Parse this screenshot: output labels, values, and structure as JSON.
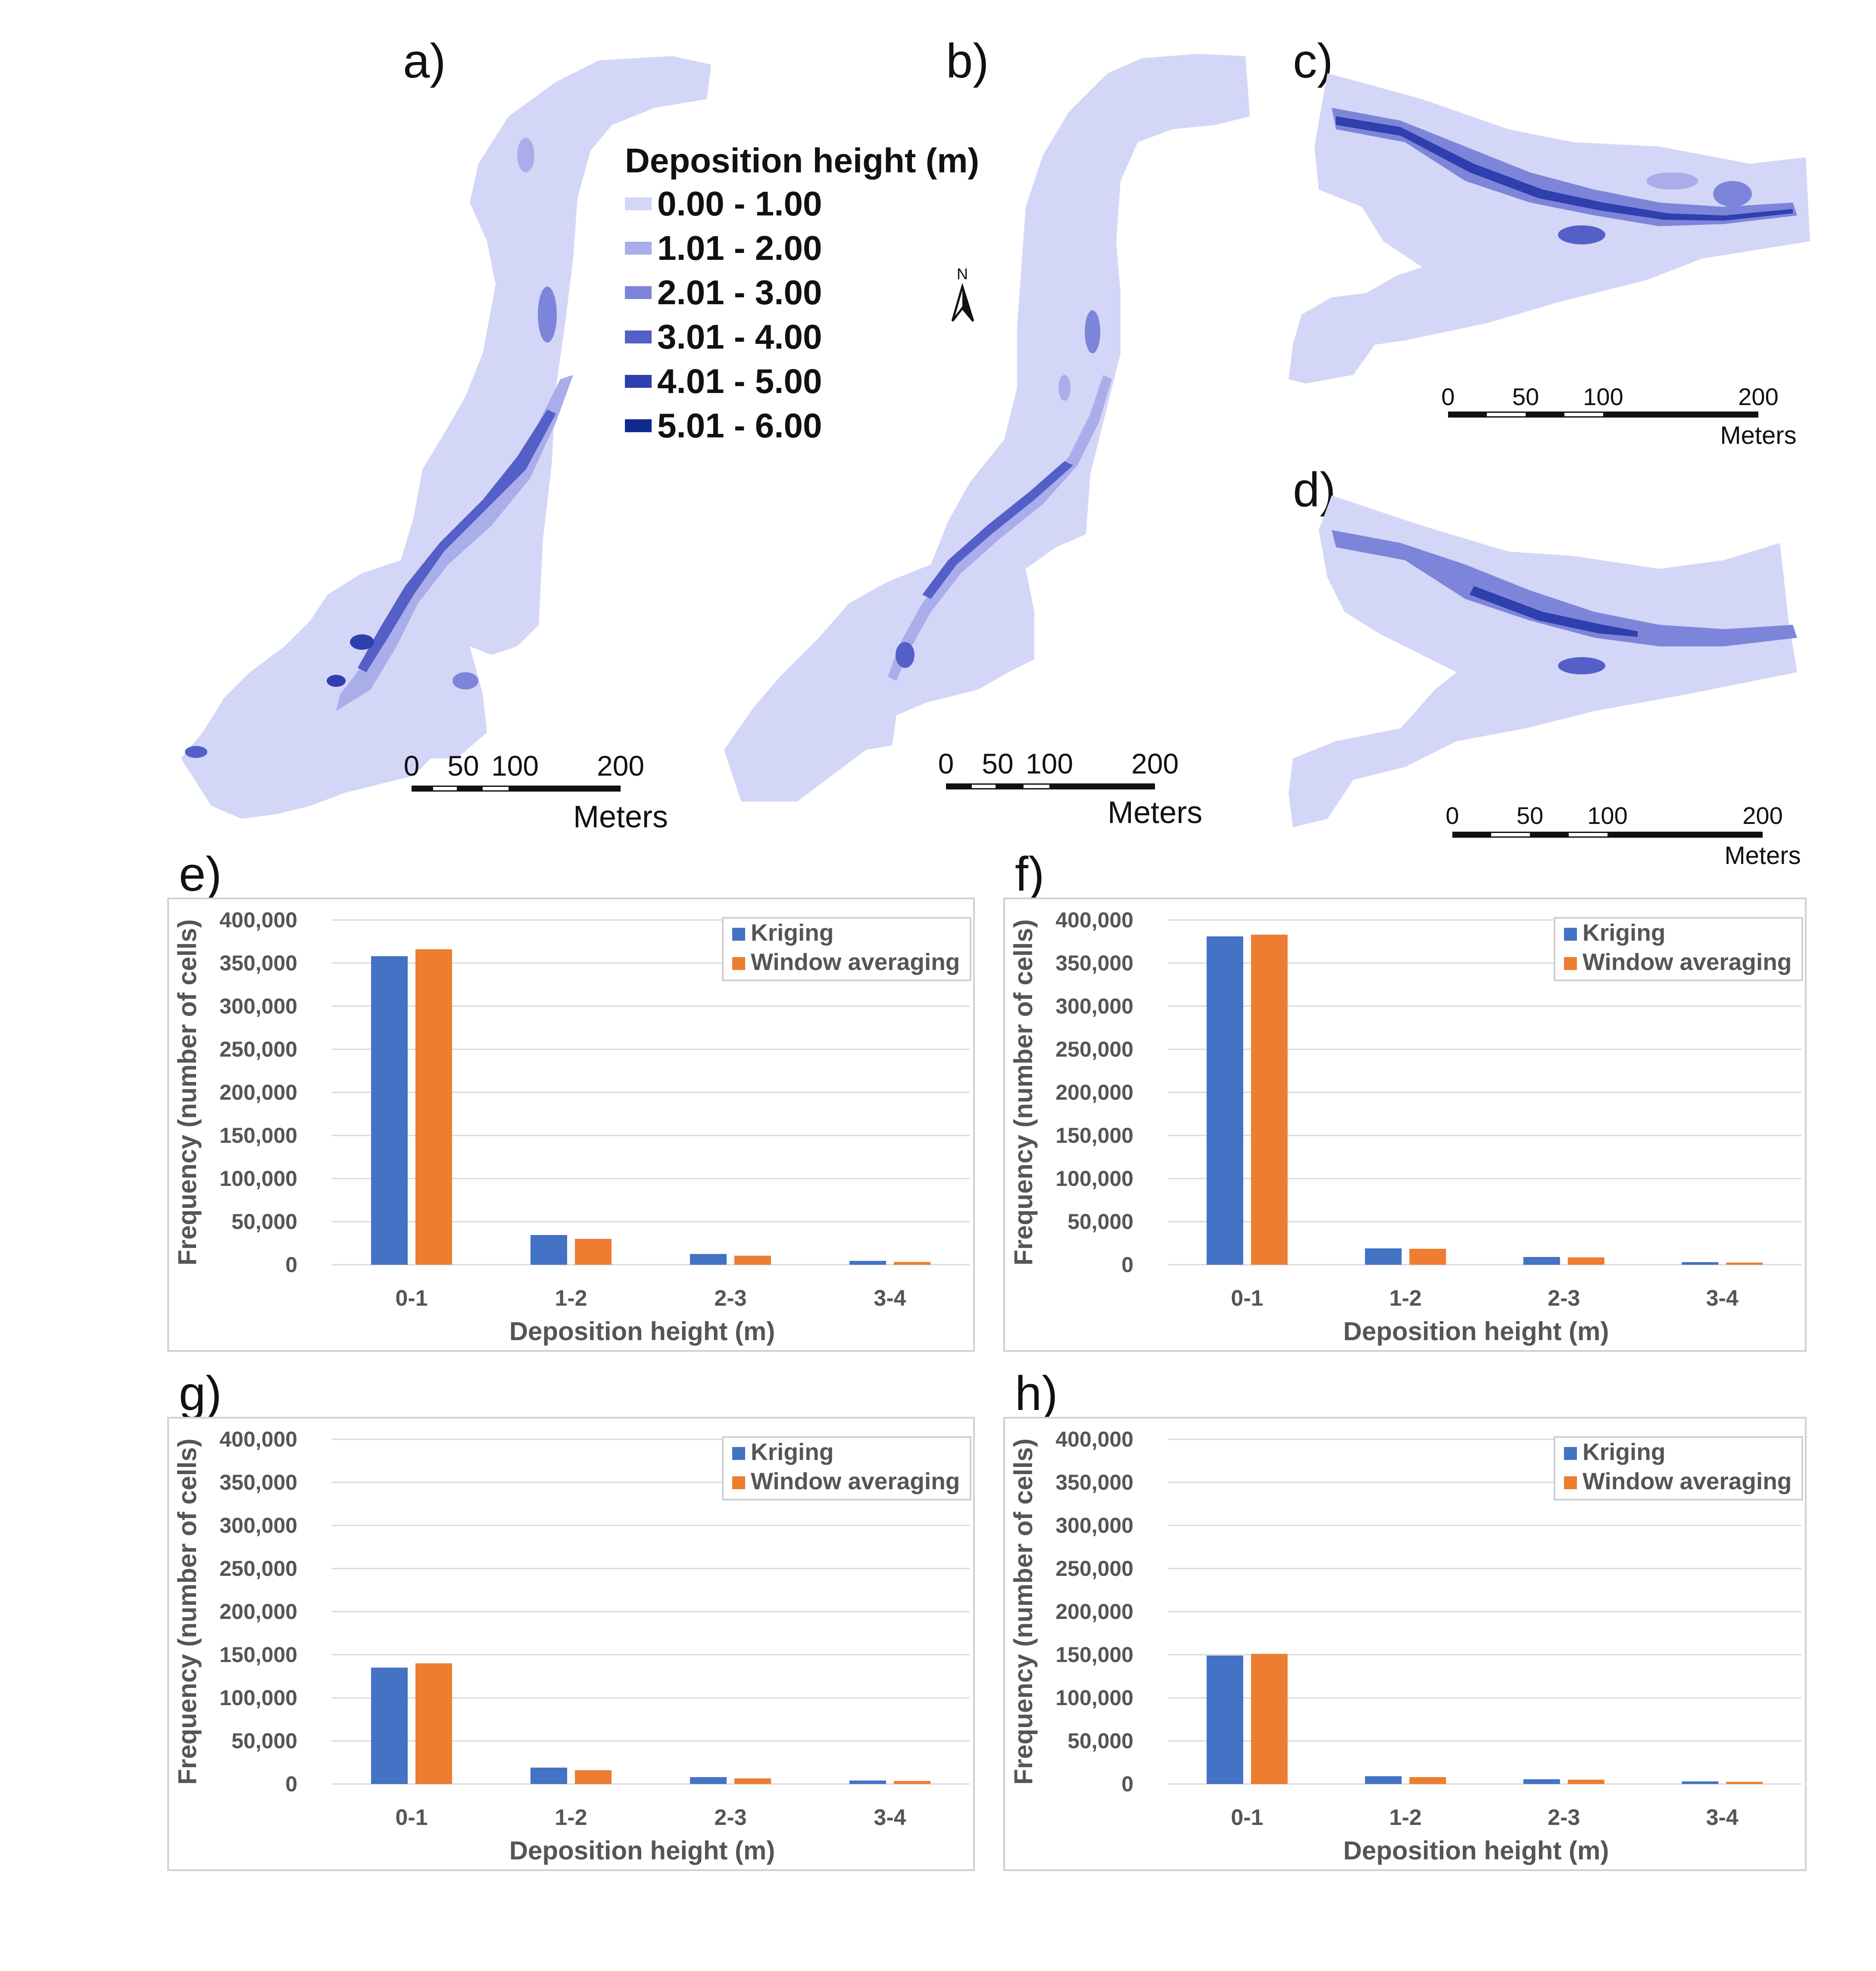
{
  "maps": {
    "legend": {
      "title": "Deposition height (m)",
      "classes": [
        {
          "label": "0.00 - 1.00",
          "color": "#d3d6f7"
        },
        {
          "label": "1.01 - 2.00",
          "color": "#a9ade9"
        },
        {
          "label": "2.01 - 3.00",
          "color": "#7d85da"
        },
        {
          "label": "3.01 - 4.00",
          "color": "#5460c7"
        },
        {
          "label": "4.01 - 5.00",
          "color": "#2f3fae"
        },
        {
          "label": "5.01 - 6.00",
          "color": "#0f2a8f"
        }
      ]
    },
    "north_label": "N",
    "panels": [
      {
        "label": "a)",
        "scale_ticks": [
          "0",
          "50",
          "100",
          "200"
        ],
        "scale_unit": "Meters"
      },
      {
        "label": "b)",
        "scale_ticks": [
          "0",
          "50",
          "100",
          "200"
        ],
        "scale_unit": "Meters"
      },
      {
        "label": "c)",
        "scale_ticks": [
          "0",
          "50",
          "100",
          "200"
        ],
        "scale_unit": "Meters"
      },
      {
        "label": "d)",
        "scale_ticks": [
          "0",
          "50",
          "100",
          "200"
        ],
        "scale_unit": "Meters"
      }
    ]
  },
  "chart_data": [
    {
      "panel": "e)",
      "type": "bar",
      "categories": [
        "0-1",
        "1-2",
        "2-3",
        "3-4"
      ],
      "series": [
        {
          "name": "Kriging",
          "color": "#4472c4",
          "values": [
            358000,
            34500,
            12500,
            4500
          ]
        },
        {
          "name": "Window averaging",
          "color": "#ed7d31",
          "values": [
            366000,
            30000,
            10500,
            3200
          ]
        }
      ],
      "xlabel": "Deposition height (m)",
      "ylabel": "Frequency (number of cells)",
      "ylim": [
        0,
        400000
      ],
      "yticks": [
        "0",
        "50,000",
        "100,000",
        "150,000",
        "200,000",
        "250,000",
        "300,000",
        "350,000",
        "400,000"
      ],
      "legend": "top-right",
      "grid": true
    },
    {
      "panel": "f)",
      "type": "bar",
      "categories": [
        "0-1",
        "1-2",
        "2-3",
        "3-4"
      ],
      "series": [
        {
          "name": "Kriging",
          "color": "#4472c4",
          "values": [
            381000,
            19000,
            9000,
            3000
          ]
        },
        {
          "name": "Window averaging",
          "color": "#ed7d31",
          "values": [
            383000,
            18500,
            8500,
            2500
          ]
        }
      ],
      "xlabel": "Deposition height (m)",
      "ylabel": "Frequency (number of cells)",
      "ylim": [
        0,
        400000
      ],
      "yticks": [
        "0",
        "50,000",
        "100,000",
        "150,000",
        "200,000",
        "250,000",
        "300,000",
        "350,000",
        "400,000"
      ],
      "legend": "top-right",
      "grid": true
    },
    {
      "panel": "g)",
      "type": "bar",
      "categories": [
        "0-1",
        "1-2",
        "2-3",
        "3-4"
      ],
      "series": [
        {
          "name": "Kriging",
          "color": "#4472c4",
          "values": [
            135000,
            19000,
            8000,
            4000
          ]
        },
        {
          "name": "Window averaging",
          "color": "#ed7d31",
          "values": [
            140000,
            16000,
            6500,
            3500
          ]
        }
      ],
      "xlabel": "Deposition height (m)",
      "ylabel": "Frequency (number of cells)",
      "ylim": [
        0,
        400000
      ],
      "yticks": [
        "0",
        "50,000",
        "100,000",
        "150,000",
        "200,000",
        "250,000",
        "300,000",
        "350,000",
        "400,000"
      ],
      "legend": "top-right",
      "grid": true
    },
    {
      "panel": "h)",
      "type": "bar",
      "categories": [
        "0-1",
        "1-2",
        "2-3",
        "3-4"
      ],
      "series": [
        {
          "name": "Kriging",
          "color": "#4472c4",
          "values": [
            149000,
            9000,
            5500,
            3000
          ]
        },
        {
          "name": "Window averaging",
          "color": "#ed7d31",
          "values": [
            151000,
            8000,
            5000,
            2500
          ]
        }
      ],
      "xlabel": "Deposition height (m)",
      "ylabel": "Frequency (number of cells)",
      "ylim": [
        0,
        400000
      ],
      "yticks": [
        "0",
        "50,000",
        "100,000",
        "150,000",
        "200,000",
        "250,000",
        "300,000",
        "350,000",
        "400,000"
      ],
      "legend": "top-right",
      "grid": true
    }
  ]
}
